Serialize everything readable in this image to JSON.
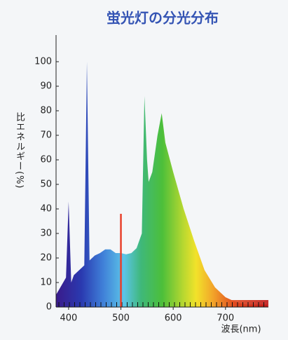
{
  "chart_data": {
    "type": "area",
    "title": "蛍光灯の分光分布",
    "x_label": "波長(nm)",
    "y_label": "比エネルギー(%)",
    "x": [
      376,
      395,
      400,
      405,
      410,
      420,
      430,
      435,
      440,
      450,
      460,
      470,
      480,
      490,
      500,
      510,
      520,
      530,
      540,
      545,
      550,
      553,
      560,
      570,
      578,
      585,
      600,
      620,
      640,
      660,
      680,
      700,
      720,
      740,
      780
    ],
    "values": [
      5,
      12,
      43,
      10,
      13,
      15,
      17,
      100,
      19,
      21,
      22,
      23.5,
      23.5,
      22,
      22,
      21.5,
      22,
      24,
      30,
      86,
      60,
      51,
      55,
      70,
      79,
      67,
      55,
      40,
      27,
      15,
      8,
      4,
      2,
      1,
      1
    ],
    "reference_line": {
      "x": 500,
      "top": 38
    },
    "xlim": [
      376,
      782
    ],
    "ylim": [
      0,
      100
    ],
    "xticks": [
      400,
      500,
      600,
      700
    ],
    "yticks": [
      0,
      10,
      20,
      30,
      40,
      50,
      60,
      70,
      80,
      90,
      100
    ]
  }
}
